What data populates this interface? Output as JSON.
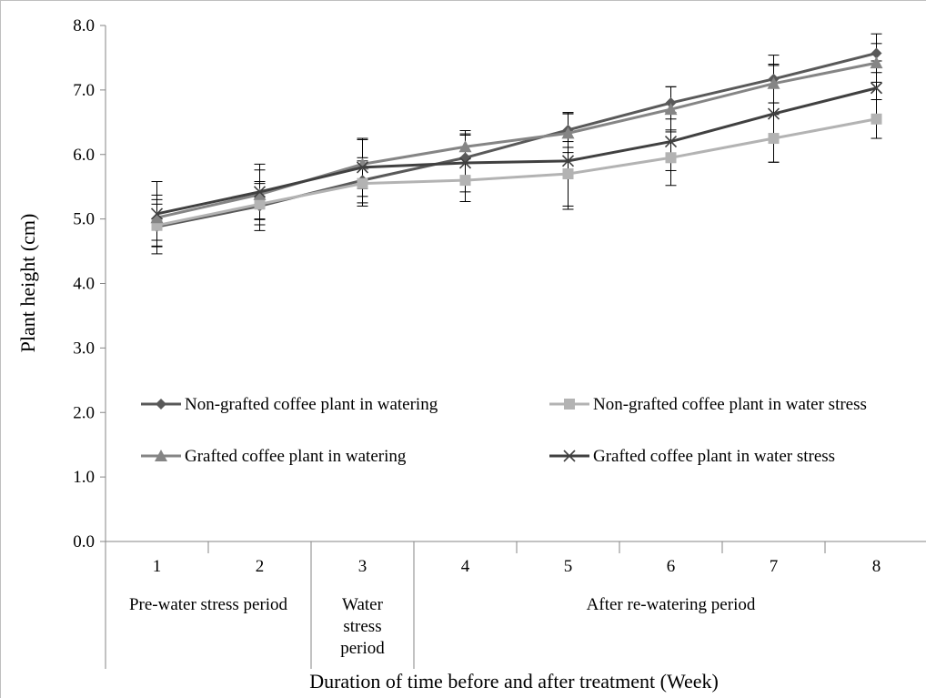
{
  "chart_data": {
    "type": "line",
    "title": "",
    "ylabel": "Plant height (cm)",
    "xlabel": "Duration of time before and after treatment (Week)",
    "ylim": [
      0,
      8
    ],
    "y_ticks": [
      "0.0",
      "1.0",
      "2.0",
      "3.0",
      "4.0",
      "5.0",
      "6.0",
      "7.0",
      "8.0"
    ],
    "categories": [
      "1",
      "2",
      "3",
      "4",
      "5",
      "6",
      "7",
      "8"
    ],
    "periods": [
      {
        "label_lines": [
          "Pre-water stress period"
        ],
        "start": 1,
        "end": 2
      },
      {
        "label_lines": [
          "Water",
          "stress",
          "period"
        ],
        "start": 3,
        "end": 3
      },
      {
        "label_lines": [
          "After re-watering period"
        ],
        "start": 4,
        "end": 8
      }
    ],
    "grid": false,
    "legend_position": "lower-middle",
    "series": [
      {
        "name": "Non-grafted coffee plant in watering",
        "marker": "diamond",
        "color": "#595959",
        "values": [
          4.88,
          5.2,
          5.6,
          5.95,
          6.38,
          6.8,
          7.17,
          7.57
        ],
        "errors": [
          0.42,
          0.38,
          0.35,
          0.35,
          0.27,
          0.25,
          0.37,
          0.3
        ]
      },
      {
        "name": "Non-grafted coffee plant in water stress",
        "marker": "square",
        "color": "#b3b3b3",
        "values": [
          4.9,
          5.23,
          5.55,
          5.6,
          5.7,
          5.95,
          6.25,
          6.55
        ],
        "errors": [
          0.33,
          0.32,
          0.35,
          0.33,
          0.5,
          0.43,
          0.37,
          0.3
        ]
      },
      {
        "name": "Grafted coffee plant in watering",
        "marker": "triangle",
        "color": "#858585",
        "values": [
          5.02,
          5.38,
          5.85,
          6.12,
          6.33,
          6.7,
          7.1,
          7.42
        ],
        "errors": [
          0.35,
          0.38,
          0.38,
          0.25,
          0.3,
          0.35,
          0.3,
          0.3
        ]
      },
      {
        "name": "Grafted coffee plant in water stress",
        "marker": "x",
        "color": "#404040",
        "values": [
          5.08,
          5.42,
          5.8,
          5.87,
          5.9,
          6.2,
          6.63,
          7.03
        ],
        "errors": [
          0.5,
          0.43,
          0.45,
          0.45,
          0.75,
          0.45,
          0.75,
          0.42
        ]
      }
    ]
  }
}
